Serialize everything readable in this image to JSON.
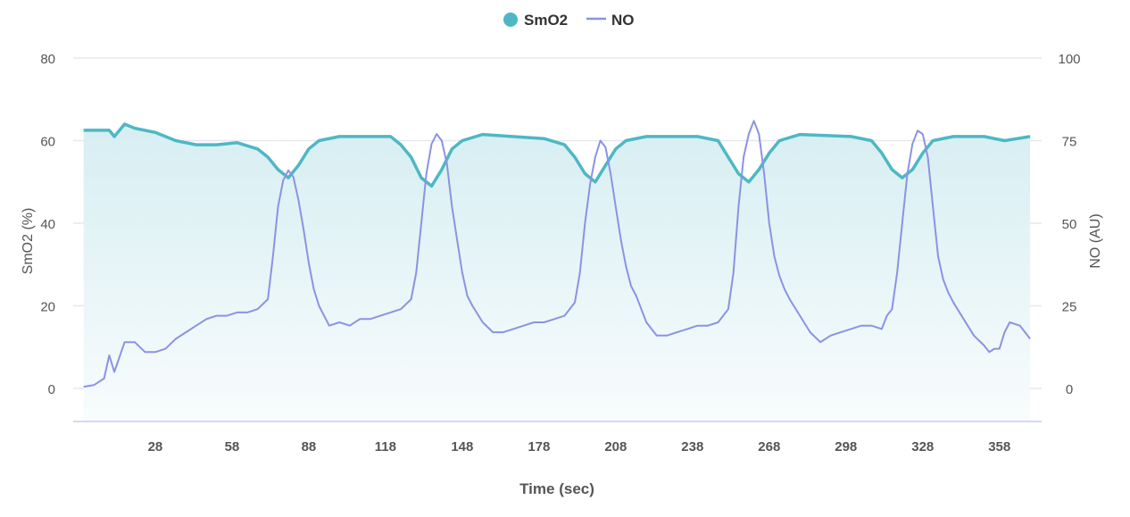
{
  "chart_data": {
    "type": "line",
    "title": "",
    "xlabel": "Time (sec)",
    "ylabel_left": "SmO2 (%)",
    "ylabel_right": "NO (AU)",
    "x_ticks": [
      28,
      58,
      88,
      118,
      148,
      178,
      208,
      238,
      268,
      298,
      328,
      358
    ],
    "xlim": [
      0,
      371
    ],
    "y_left_ticks": [
      0,
      20,
      40,
      60,
      80
    ],
    "y_left_lim": [
      -8,
      80
    ],
    "y_right_ticks": [
      0,
      25,
      50,
      75,
      100
    ],
    "y_right_lim": [
      -10,
      100
    ],
    "grid": true,
    "legend_position": "top-center",
    "colors": {
      "SmO2": "#4db8c4",
      "NO": "#8b93e3",
      "fill_top": "#d7eef2",
      "fill_bottom": "#f8fcfd"
    },
    "series": [
      {
        "name": "SmO2",
        "axis": "left",
        "legend_marker": "circle",
        "x": [
          0,
          10,
          12,
          16,
          20,
          28,
          36,
          44,
          52,
          60,
          68,
          72,
          76,
          80,
          84,
          88,
          92,
          100,
          120,
          124,
          128,
          132,
          136,
          140,
          144,
          148,
          156,
          180,
          188,
          192,
          196,
          200,
          204,
          208,
          212,
          220,
          240,
          248,
          252,
          256,
          260,
          264,
          268,
          272,
          280,
          300,
          308,
          312,
          316,
          320,
          324,
          328,
          332,
          340,
          352,
          360,
          370
        ],
        "y": [
          62.5,
          62.5,
          61,
          64,
          63,
          62,
          60,
          59,
          59,
          59.5,
          58,
          56,
          53,
          51,
          54,
          58,
          60,
          61,
          61,
          59,
          56,
          51,
          49,
          53,
          58,
          60,
          61.5,
          60.5,
          59,
          56,
          52,
          50,
          54,
          58,
          60,
          61,
          61,
          60,
          56,
          52,
          50,
          53,
          57,
          60,
          61.5,
          61,
          60,
          57,
          53,
          51,
          53,
          57,
          60,
          61,
          61,
          60,
          61
        ]
      },
      {
        "name": "NO",
        "axis": "right",
        "legend_marker": "line",
        "x": [
          0,
          4,
          8,
          10,
          12,
          16,
          20,
          24,
          28,
          32,
          36,
          40,
          44,
          48,
          52,
          56,
          60,
          64,
          68,
          72,
          74,
          76,
          78,
          80,
          82,
          84,
          86,
          88,
          90,
          92,
          94,
          96,
          100,
          104,
          108,
          112,
          116,
          120,
          124,
          128,
          130,
          132,
          134,
          136,
          138,
          140,
          142,
          144,
          146,
          148,
          150,
          152,
          156,
          160,
          164,
          168,
          172,
          176,
          180,
          184,
          188,
          192,
          194,
          196,
          198,
          200,
          202,
          204,
          206,
          208,
          210,
          212,
          214,
          216,
          218,
          220,
          224,
          228,
          232,
          236,
          240,
          244,
          248,
          252,
          254,
          256,
          258,
          260,
          262,
          264,
          266,
          268,
          270,
          272,
          274,
          276,
          280,
          284,
          288,
          292,
          296,
          300,
          304,
          308,
          312,
          314,
          316,
          318,
          320,
          322,
          324,
          326,
          328,
          330,
          332,
          334,
          336,
          338,
          340,
          344,
          348,
          352,
          354,
          356,
          358,
          360,
          362,
          366,
          368,
          370
        ],
        "y": [
          0.5,
          1,
          3,
          10,
          5,
          14,
          14,
          11,
          11,
          12,
          15,
          17,
          19,
          21,
          22,
          22,
          23,
          23,
          24,
          27,
          40,
          55,
          63,
          66,
          64,
          57,
          48,
          38,
          30,
          25,
          22,
          19,
          20,
          19,
          21,
          21,
          22,
          23,
          24,
          27,
          35,
          50,
          65,
          74,
          77,
          75,
          68,
          55,
          45,
          35,
          28,
          25,
          20,
          17,
          17,
          18,
          19,
          20,
          20,
          21,
          22,
          26,
          35,
          50,
          62,
          70,
          75,
          73,
          65,
          55,
          45,
          37,
          31,
          28,
          24,
          20,
          16,
          16,
          17,
          18,
          19,
          19,
          20,
          24,
          35,
          55,
          70,
          77,
          81,
          77,
          65,
          50,
          40,
          34,
          30,
          27,
          22,
          17,
          14,
          16,
          17,
          18,
          19,
          19,
          18,
          22,
          24,
          35,
          50,
          65,
          74,
          78,
          77,
          70,
          55,
          40,
          33,
          29,
          26,
          21,
          16,
          13,
          11,
          12,
          12,
          17,
          20,
          19,
          17,
          15
        ]
      }
    ]
  }
}
